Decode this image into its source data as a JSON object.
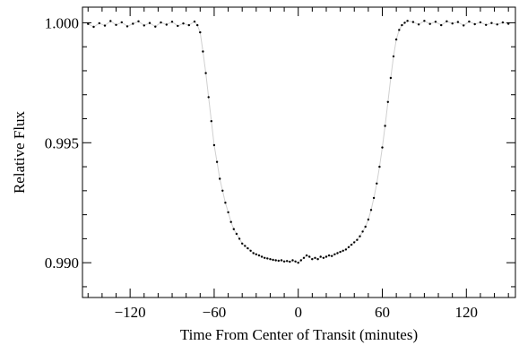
{
  "chart_data": {
    "type": "scatter",
    "title": "",
    "xlabel": "Time From Center of Transit (minutes)",
    "ylabel": "Relative Flux",
    "xlim": [
      -154,
      155
    ],
    "ylim": [
      0.98855,
      1.00065
    ],
    "x_ticks": [
      -120,
      -60,
      0,
      60,
      120
    ],
    "x_tick_labels": [
      "−120",
      "−60",
      "0",
      "60",
      "120"
    ],
    "y_ticks": [
      0.99,
      0.995,
      1.0
    ],
    "y_tick_labels": [
      "0.990",
      "0.995",
      "1.000"
    ],
    "grid": false,
    "legend": "none",
    "series": [
      {
        "role": "binned photometry",
        "marker_color": "#000000",
        "points": [
          [
            -150,
            0.99995
          ],
          [
            -146,
            0.99983
          ],
          [
            -142,
            0.99998
          ],
          [
            -138,
            0.99988
          ],
          [
            -134,
            1.00007
          ],
          [
            -130,
            0.99991
          ],
          [
            -126,
            1.00002
          ],
          [
            -122,
            0.99985
          ],
          [
            -118,
            0.99996
          ],
          [
            -114,
            1.00006
          ],
          [
            -110,
            0.99989
          ],
          [
            -106,
            0.99999
          ],
          [
            -102,
            0.99984
          ],
          [
            -98,
            1.00001
          ],
          [
            -94,
            0.99992
          ],
          [
            -90,
            1.00004
          ],
          [
            -86,
            0.99987
          ],
          [
            -82,
            0.99997
          ],
          [
            -78,
            0.9999
          ],
          [
            -74,
            1.00005
          ],
          [
            -72,
            0.9999
          ],
          [
            -70,
            0.9996
          ],
          [
            -68,
            0.9988
          ],
          [
            -66,
            0.9979
          ],
          [
            -64,
            0.9969
          ],
          [
            -62,
            0.9959
          ],
          [
            -60,
            0.9949
          ],
          [
            -58,
            0.9942
          ],
          [
            -56,
            0.9935
          ],
          [
            -54,
            0.993
          ],
          [
            -52,
            0.9925
          ],
          [
            -50,
            0.9921
          ],
          [
            -48,
            0.9917
          ],
          [
            -46,
            0.9914
          ],
          [
            -44,
            0.9912
          ],
          [
            -42,
            0.991
          ],
          [
            -40,
            0.9908
          ],
          [
            -38,
            0.9907
          ],
          [
            -36,
            0.9906
          ],
          [
            -34,
            0.9905
          ],
          [
            -32,
            0.9904
          ],
          [
            -30,
            0.99035
          ],
          [
            -28,
            0.9903
          ],
          [
            -26,
            0.99025
          ],
          [
            -24,
            0.9902
          ],
          [
            -22,
            0.99018
          ],
          [
            -20,
            0.99015
          ],
          [
            -18,
            0.99012
          ],
          [
            -16,
            0.9901
          ],
          [
            -14,
            0.99008
          ],
          [
            -12,
            0.9901
          ],
          [
            -10,
            0.99005
          ],
          [
            -8,
            0.99007
          ],
          [
            -6,
            0.99004
          ],
          [
            -4,
            0.9901
          ],
          [
            -2,
            0.99005
          ],
          [
            0,
            0.99
          ],
          [
            2,
            0.9901
          ],
          [
            4,
            0.9902
          ],
          [
            6,
            0.9903
          ],
          [
            8,
            0.99025
          ],
          [
            10,
            0.99015
          ],
          [
            12,
            0.9902
          ],
          [
            14,
            0.99015
          ],
          [
            16,
            0.99025
          ],
          [
            18,
            0.9902
          ],
          [
            20,
            0.99025
          ],
          [
            22,
            0.9903
          ],
          [
            24,
            0.99028
          ],
          [
            26,
            0.99035
          ],
          [
            28,
            0.9904
          ],
          [
            30,
            0.99045
          ],
          [
            32,
            0.9905
          ],
          [
            34,
            0.99055
          ],
          [
            36,
            0.99065
          ],
          [
            38,
            0.99075
          ],
          [
            40,
            0.99085
          ],
          [
            42,
            0.99095
          ],
          [
            44,
            0.9911
          ],
          [
            46,
            0.9913
          ],
          [
            48,
            0.9915
          ],
          [
            50,
            0.9918
          ],
          [
            52,
            0.9922
          ],
          [
            54,
            0.9927
          ],
          [
            56,
            0.9933
          ],
          [
            58,
            0.994
          ],
          [
            60,
            0.9948
          ],
          [
            62,
            0.9957
          ],
          [
            64,
            0.9967
          ],
          [
            66,
            0.9977
          ],
          [
            68,
            0.9986
          ],
          [
            70,
            0.9993
          ],
          [
            72,
            0.9997
          ],
          [
            74,
            0.9999
          ],
          [
            76,
            1.0
          ],
          [
            78,
            1.00008
          ],
          [
            82,
            1.00003
          ],
          [
            86,
            0.99993
          ],
          [
            90,
            1.00008
          ],
          [
            94,
            0.99995
          ],
          [
            98,
            1.00004
          ],
          [
            102,
            0.9999
          ],
          [
            106,
            1.00006
          ],
          [
            110,
            0.99997
          ],
          [
            114,
            1.00003
          ],
          [
            118,
            0.99989
          ],
          [
            122,
            1.00005
          ],
          [
            126,
            0.99994
          ],
          [
            130,
            1.00002
          ],
          [
            134,
            0.99991
          ],
          [
            138,
            0.99999
          ],
          [
            142,
            0.99993
          ],
          [
            146,
            1.00001
          ],
          [
            150,
            0.99996
          ]
        ]
      }
    ]
  }
}
